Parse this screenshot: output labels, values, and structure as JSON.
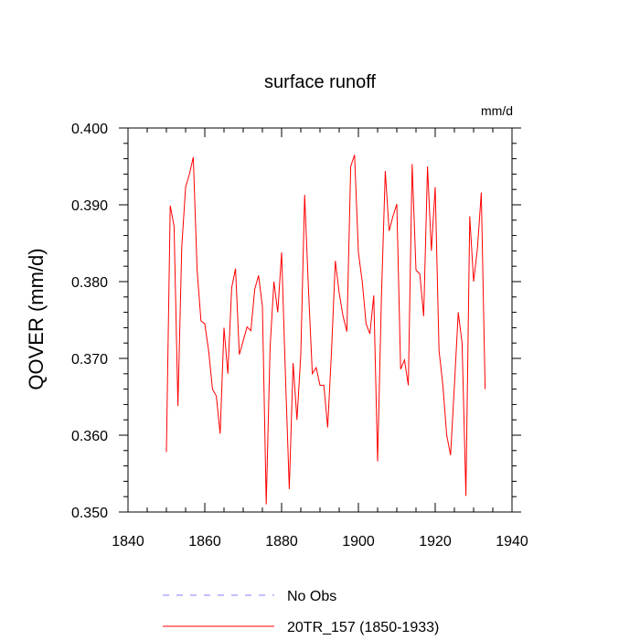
{
  "chart_data": {
    "type": "line",
    "title": "surface runoff",
    "units_label": "mm/d",
    "ylabel": "QOVER  (mm/d)",
    "xlabel": "",
    "xlim": [
      1840,
      1940
    ],
    "ylim": [
      0.35,
      0.4
    ],
    "x_ticks": [
      1840,
      1860,
      1880,
      1900,
      1920,
      1940
    ],
    "x_tick_labels": [
      "1840",
      "1860",
      "1880",
      "1900",
      "1920",
      "1940"
    ],
    "y_ticks": [
      0.35,
      0.36,
      0.37,
      0.38,
      0.39,
      0.4
    ],
    "y_tick_labels": [
      "0.350",
      "0.360",
      "0.370",
      "0.380",
      "0.390",
      "0.400"
    ],
    "grid": false,
    "legend_position": "bottom",
    "series": [
      {
        "name": "No Obs",
        "color": "#8080ff",
        "dashed": true,
        "x": [],
        "values": []
      },
      {
        "name": "20TR_157 (1850-1933)",
        "color": "#ff0000",
        "dashed": false,
        "x": [
          1850,
          1851,
          1852,
          1853,
          1854,
          1855,
          1856,
          1857,
          1858,
          1859,
          1860,
          1861,
          1862,
          1863,
          1864,
          1865,
          1866,
          1867,
          1868,
          1869,
          1870,
          1871,
          1872,
          1873,
          1874,
          1875,
          1876,
          1877,
          1878,
          1879,
          1880,
          1881,
          1882,
          1883,
          1884,
          1885,
          1886,
          1887,
          1888,
          1889,
          1890,
          1891,
          1892,
          1893,
          1894,
          1895,
          1896,
          1897,
          1898,
          1899,
          1900,
          1901,
          1902,
          1903,
          1904,
          1905,
          1906,
          1907,
          1908,
          1909,
          1910,
          1911,
          1912,
          1913,
          1914,
          1915,
          1916,
          1917,
          1918,
          1919,
          1920,
          1921,
          1922,
          1923,
          1924,
          1925,
          1926,
          1927,
          1928,
          1929,
          1930,
          1931,
          1932,
          1933
        ],
        "values": [
          0.3578,
          0.3899,
          0.3872,
          0.3638,
          0.3845,
          0.3923,
          0.394,
          0.3962,
          0.3815,
          0.3749,
          0.3745,
          0.371,
          0.366,
          0.3651,
          0.3602,
          0.374,
          0.368,
          0.3792,
          0.3817,
          0.3705,
          0.3723,
          0.3741,
          0.3736,
          0.379,
          0.3808,
          0.3768,
          0.351,
          0.3714,
          0.38,
          0.376,
          0.3838,
          0.3678,
          0.353,
          0.3694,
          0.362,
          0.3705,
          0.3913,
          0.379,
          0.368,
          0.3688,
          0.3665,
          0.3665,
          0.361,
          0.371,
          0.3827,
          0.3785,
          0.3755,
          0.3735,
          0.395,
          0.3965,
          0.3838,
          0.38,
          0.3745,
          0.3732,
          0.3782,
          0.3566,
          0.378,
          0.3944,
          0.3866,
          0.3885,
          0.3901,
          0.3686,
          0.3698,
          0.3665,
          0.3953,
          0.3815,
          0.381,
          0.3755,
          0.395,
          0.384,
          0.3923,
          0.371,
          0.3665,
          0.36,
          0.3574,
          0.3664,
          0.376,
          0.372,
          0.3521,
          0.3885,
          0.38,
          0.3843,
          0.3916,
          0.366
        ]
      }
    ]
  }
}
